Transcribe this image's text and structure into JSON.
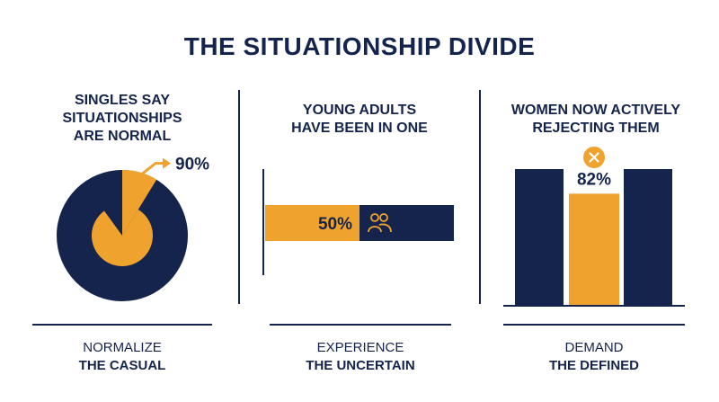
{
  "title": "THE SITUATIONSHIP DIVIDE",
  "colors": {
    "navy": "#15244d",
    "orange": "#f0a22e",
    "white": "#ffffff"
  },
  "panels": [
    {
      "heading": [
        "SINGLES SAY",
        "SITUATIONSHIPS",
        "ARE NORMAL"
      ],
      "caption": {
        "line1": "NORMALIZE",
        "line2": "THE CASUAL"
      }
    },
    {
      "heading": [
        "YOUNG ADULTS",
        "HAVE BEEN IN ONE"
      ],
      "caption": {
        "line1": "EXPERIENCE",
        "line2": "THE UNCERTAIN"
      },
      "icon": "people-icon"
    },
    {
      "heading": [
        "WOMEN NOW ACTIVELY",
        "REJECTING THEM"
      ],
      "caption": {
        "line1": "DEMAND",
        "line2": "THE DEFINED"
      },
      "icon": "close-circle-icon"
    }
  ],
  "chart_data": [
    {
      "type": "pie",
      "values": [
        90
      ],
      "labels": [
        "90%"
      ],
      "unit": "%"
    },
    {
      "type": "bar",
      "orientation": "horizontal",
      "values": [
        50
      ],
      "labels": [
        "50%"
      ],
      "unit": "%"
    },
    {
      "type": "bar",
      "values": [
        82
      ],
      "labels": [
        "82%"
      ],
      "unit": "%"
    }
  ]
}
